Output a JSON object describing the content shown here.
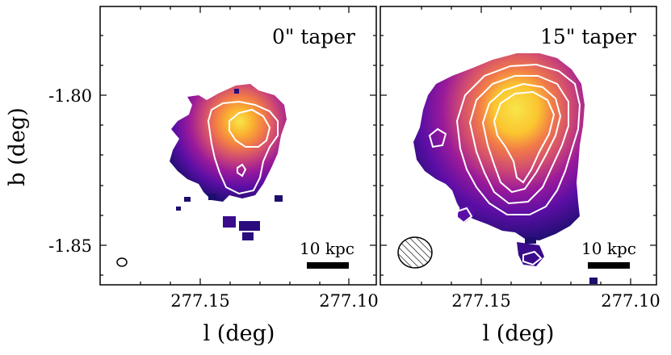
{
  "figure": {
    "ylabel": "b (deg)",
    "panels": [
      {
        "title": "0\" taper",
        "xlabel": "l (deg)",
        "xticks": [
          "277.15",
          "277.10"
        ],
        "yticks": [
          "-1.80",
          "-1.85"
        ],
        "scalebar_label": "10 kpc"
      },
      {
        "title": "15\" taper",
        "xlabel": "l (deg)",
        "xticks": [
          "277.15",
          "277.10"
        ],
        "scalebar_label": "10 kpc"
      }
    ],
    "colormap": [
      "#1d0e6e",
      "#5b0ea5",
      "#9a1a9a",
      "#d04a72",
      "#f27c47",
      "#fbb52f",
      "#f8e54a"
    ],
    "contour_color": "#ffffff",
    "frame_color": "#000000"
  }
}
